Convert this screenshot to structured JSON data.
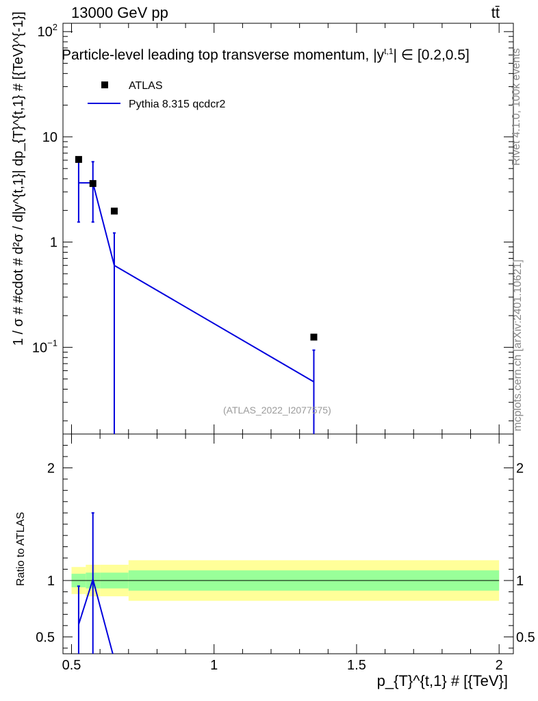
{
  "header": {
    "energy_label": "13000 GeV pp",
    "process_label": "tt̄"
  },
  "title": "Particle-level leading top transverse momentum, |y",
  "title_sup": "t,1",
  "title_tail": "| ∈ [0.2,0.5]",
  "side_notes": {
    "rivet": "Rivet 4.1.0,  100k events",
    "mcplots": "mcplots.cern.ch [arXiv:2401.10621]"
  },
  "analysis_id": "(ATLAS_2022_I2077575)",
  "legend": {
    "data_label": "ATLAS",
    "mc_label": "Pythia 8.315 qcdcr2"
  },
  "colors": {
    "data": "#000000",
    "mc": "#0000dd",
    "band_inner": "#99ff99",
    "band_outer": "#ffff99"
  },
  "chart_data": [
    {
      "type": "line",
      "panel": "main",
      "xlabel": "p_{T}^{t,1} # [{TeV}]",
      "ylabel": "1 / σ # #cdot # d²σ / d|y^{t,1}| dp_{T}^{t,1} # [{TeV}^{-1}]",
      "xlim": [
        0.47,
        2.05
      ],
      "ylim": [
        0.015,
        120
      ],
      "yscale": "log",
      "x_ticks": [
        "0.5",
        "1",
        "1.5",
        "2"
      ],
      "y_ticks": [
        "10^{-1}",
        "1",
        "10",
        "10^{2}"
      ],
      "series": [
        {
          "name": "ATLAS",
          "style": "markers",
          "x": [
            0.525,
            0.575,
            0.65,
            1.35
          ],
          "y": [
            6.1,
            3.6,
            1.97,
            0.125
          ]
        },
        {
          "name": "Pythia 8.315 qcdcr2",
          "style": "line",
          "x": [
            0.525,
            0.575,
            0.65,
            1.35
          ],
          "y": [
            3.65,
            3.65,
            0.6,
            0.047
          ],
          "yerr_low": [
            1.55,
            1.55,
            0.012,
            0.012
          ],
          "yerr_high": [
            5.8,
            5.8,
            1.22,
            0.094
          ]
        }
      ]
    },
    {
      "type": "line",
      "panel": "ratio",
      "ylabel": "Ratio to ATLAS",
      "xlim": [
        0.47,
        2.05
      ],
      "ylim": [
        0.35,
        2.3
      ],
      "y_ticks": [
        "0.5",
        "1",
        "2"
      ],
      "x_ticks": [
        "0.5",
        "1",
        "1.5",
        "2"
      ],
      "bands": {
        "edges": [
          0.5,
          0.55,
          0.6,
          0.7,
          2.0
        ],
        "inner_low": [
          0.94,
          0.93,
          0.93,
          0.91
        ],
        "inner_high": [
          1.06,
          1.07,
          1.07,
          1.09
        ],
        "outer_low": [
          0.88,
          0.86,
          0.86,
          0.82
        ],
        "outer_high": [
          1.12,
          1.14,
          1.14,
          1.18
        ]
      },
      "series": [
        {
          "name": "Pythia 8.315 qcdcr2",
          "x": [
            0.525,
            0.575,
            0.65
          ],
          "y": [
            0.61,
            1.01,
            0.3
          ],
          "yerr_low": [
            0.3,
            0.3,
            0.3
          ],
          "yerr_high": [
            0.95,
            1.6,
            0.35
          ]
        }
      ]
    }
  ]
}
